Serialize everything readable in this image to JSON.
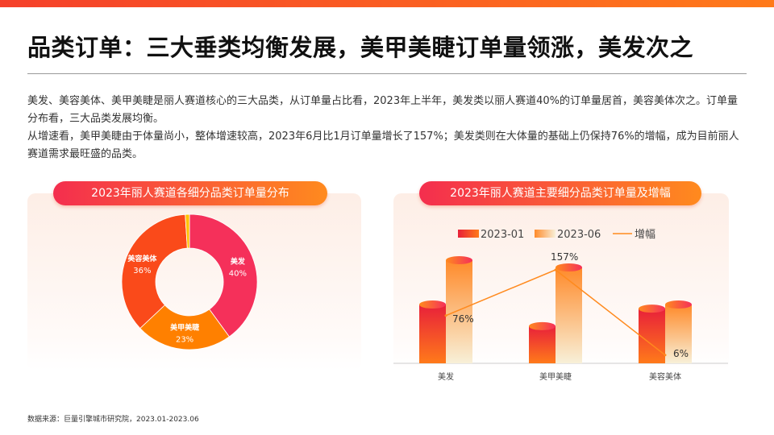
{
  "title": "品类订单：三大垂类均衡发展，美甲美睫订单量领涨，美发次之",
  "paragraphs": [
    "美发、美容美体、美甲美睫是丽人赛道核心的三大品类，从订单量占比看，2023年上半年，美发类以丽人赛道40%的订单量居首，美容美体次之。订单量分布看，三大品类发展均衡。",
    "从增速看，美甲美睫由于体量尚小，整体增速较高，2023年6月比1月订单量增长了157%；美发类则在大体量的基础上仍保持76%的增幅，成为目前丽人赛道需求最旺盛的品类。"
  ],
  "source": "数据来源：巨量引擎城市研究院，2023.01-2023.06",
  "colors": {
    "accent": "#ff5a1f",
    "red": "#f5305a",
    "orange": "#ff8000",
    "deep_orange": "#fa4a1a",
    "yellow": "#ffc000",
    "line": "#ff8a1e"
  },
  "chart_data": [
    {
      "type": "pie",
      "title": "2023年丽人赛道各细分品类订单量分布",
      "donut": true,
      "slices": [
        {
          "label": "美发",
          "value": 40,
          "display": "40%",
          "color": "#f5305a"
        },
        {
          "label": "美甲美睫",
          "value": 23,
          "display": "23%",
          "color": "#ff8000"
        },
        {
          "label": "美容美体",
          "value": 36,
          "display": "36%",
          "color": "#fa4a1a"
        },
        {
          "label": "",
          "value": 1,
          "display": "",
          "color": "#ffc000"
        }
      ]
    },
    {
      "type": "bar",
      "title": "2023年丽人赛道主要细分品类订单量及增幅",
      "categories": [
        "美发",
        "美甲美睫",
        "美容美体"
      ],
      "series": [
        {
          "name": "2023-01",
          "values": [
            57,
            36,
            53
          ]
        },
        {
          "name": "2023-06",
          "values": [
            100,
            93,
            57
          ]
        }
      ],
      "line": {
        "name": "增幅",
        "values": [
          76,
          157,
          6
        ],
        "labels": [
          "76%",
          "157%",
          "6%"
        ]
      },
      "legend": "top",
      "grid": false
    }
  ]
}
